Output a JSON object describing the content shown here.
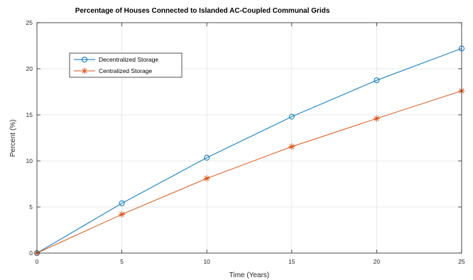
{
  "chart_data": {
    "type": "line",
    "title": "Percentage of Houses Connected to Islanded AC-Coupled Communal Grids",
    "xlabel": "Time (Years)",
    "ylabel": "Percent (%)",
    "xlim": [
      0,
      25
    ],
    "ylim": [
      0,
      25
    ],
    "xticks": [
      "0",
      "5",
      "10",
      "15",
      "20",
      "25"
    ],
    "yticks": [
      "0",
      "5",
      "10",
      "15",
      "20",
      "25"
    ],
    "grid": true,
    "legend_position": "top-left",
    "x": [
      0,
      5,
      10,
      15,
      20,
      25
    ],
    "series": [
      {
        "name": "Decentralized Storage",
        "values": [
          0,
          5.4,
          10.35,
          14.8,
          18.75,
          22.2
        ],
        "color": "#0072BD",
        "marker": "circle"
      },
      {
        "name": "Centralized Storage",
        "values": [
          0,
          4.2,
          8.1,
          11.55,
          14.6,
          17.6
        ],
        "color": "#D95319",
        "marker": "asterisk"
      }
    ]
  }
}
